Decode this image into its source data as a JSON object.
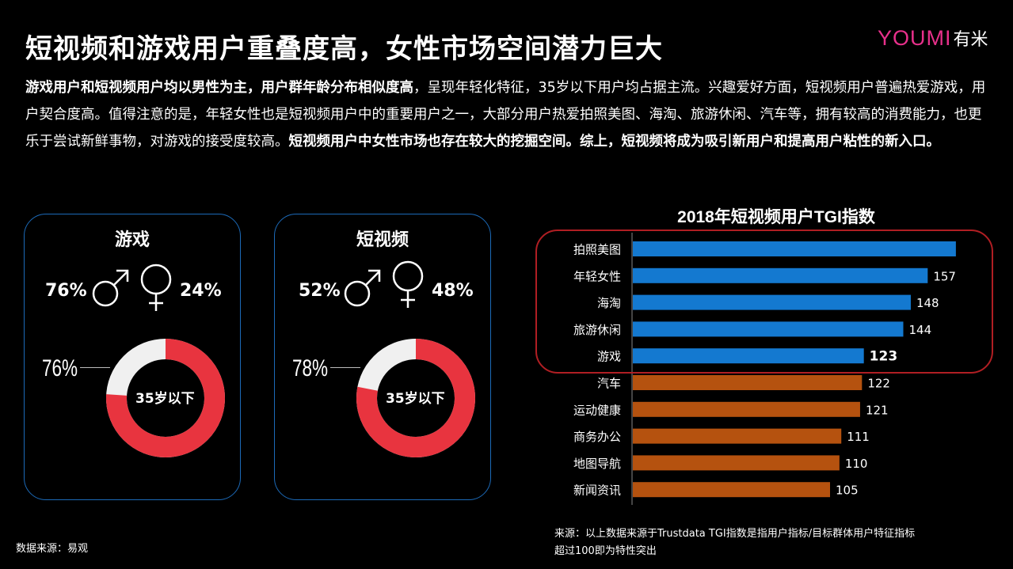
{
  "header": {
    "title": "短视频和游戏用户重叠度高，女性市场空间潜力巨大",
    "logo_text": "YOUMI",
    "logo_cn": "有米"
  },
  "intro": {
    "p1_bold": "游戏用户和短视频用户均以男性为主，用户群年龄分布相似度高",
    "p1_normal": "，呈现年轻化特征，35岁以下用户均占据主流。兴趣爱好方面，短视频用户普遍热爱游戏，用户契合度高。值得注意的是，年轻女性也是短视频用户中的重要用户之一，大部分用户热爱拍照美图、海淘、旅游休闲、汽车等，拥有较高的消费能力，也更乐于尝试新鲜事物，对游戏的接受度较高。",
    "p2_bold": "短视频用户中女性市场也存在较大的挖掘空间。综上，短视频将成为吸引新用户和提高用户粘性的新入口。"
  },
  "panels": [
    {
      "title": "游戏",
      "male": "76%",
      "female": "24%",
      "age_pct": "76%",
      "age_value": 76,
      "age_label": "35岁以下"
    },
    {
      "title": "短视频",
      "male": "52%",
      "female": "48%",
      "age_pct": "78%",
      "age_value": 78,
      "age_label": "35岁以下"
    }
  ],
  "colors": {
    "accent_red": "#e8343f",
    "donut_rest": "#f0f0f0",
    "bar_blue": "#1479d0",
    "bar_orange": "#b5520f",
    "frame_red": "#b01e23",
    "panel_border": "#1c6ab8"
  },
  "chart_data": {
    "type": "bar",
    "orientation": "horizontal",
    "title": "2018年短视频用户TGI指数",
    "categories": [
      "拍照美图",
      "年轻女性",
      "海淘",
      "旅游休闲",
      "游戏",
      "汽车",
      "运动健康",
      "商务办公",
      "地图导航",
      "新闻资讯"
    ],
    "values": [
      172,
      157,
      148,
      144,
      123,
      122,
      121,
      111,
      110,
      105
    ],
    "value_labels": [
      "",
      "157",
      "148",
      "144",
      "123",
      "122",
      "121",
      "111",
      "110",
      "105"
    ],
    "highlighted_categories": [
      "拍照美图",
      "年轻女性",
      "海淘",
      "旅游休闲",
      "游戏"
    ],
    "xlim": [
      0,
      175
    ],
    "grid": false,
    "legend": "none"
  },
  "sources": {
    "left": "数据来源：易观",
    "right_line1": "来源：以上数据来源于Trustdata  TGI指数是指用户指标/目标群体用户特征指标",
    "right_line2": "超过100即为特性突出"
  }
}
